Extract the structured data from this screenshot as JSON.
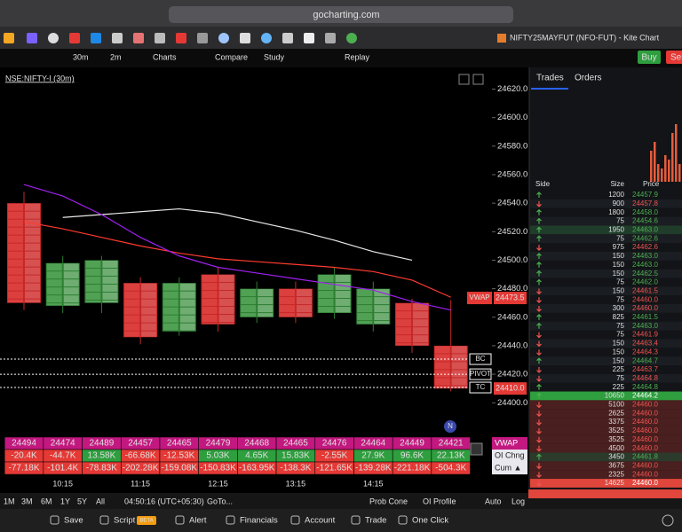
{
  "browser": {
    "url": "gocharting.com",
    "tab_title": "NIFTY25MAYFUT (NFO-FUT) - Kite Chart"
  },
  "toolbar": {
    "items": [
      "30m",
      "2m",
      "Charts",
      "Compare",
      "Study",
      "Replay"
    ],
    "buy": "Buy",
    "sell": "Sell"
  },
  "chart_data": {
    "type": "candlestick",
    "title": "NSE:NIFTY-I (30m)",
    "categories": [
      null,
      "10:15",
      null,
      "11:15",
      null,
      "12:15",
      null,
      "13:15",
      null,
      "14:15",
      null,
      null
    ],
    "open": [
      24540,
      24468,
      24470,
      24484,
      24450,
      24490,
      24460,
      24480,
      24463,
      24455,
      24470,
      24440
    ],
    "high": [
      24548,
      24503,
      24503,
      24488,
      24488,
      24495,
      24485,
      24485,
      24495,
      24485,
      24473,
      24472
    ],
    "low": [
      24465,
      24463,
      24463,
      24441,
      24447,
      24450,
      24456,
      24456,
      24459,
      24450,
      24435,
      24408
    ],
    "close": [
      24470,
      24498,
      24500,
      24446,
      24484,
      24455,
      24480,
      24460,
      24490,
      24480,
      24440,
      24410
    ],
    "up_color": "#2e7d32",
    "down_color": "#c62828",
    "lines": [
      {
        "color": "#ff3b30",
        "values": [
          24527,
          24522,
          24516,
          24510,
          24505,
          24501,
          24499,
          24497,
          24495,
          24492,
          24486,
          24474
        ]
      },
      {
        "color": "#e8e8e8",
        "values": [
          null,
          24530,
          24532,
          24534,
          24536,
          24533,
          24527,
          24521,
          24514,
          24506,
          24500,
          null
        ]
      },
      {
        "color": "#a020f0",
        "values": [
          24553,
          24545,
          24532,
          24516,
          24503,
          24495,
          24491,
          24487,
          24483,
          24479,
          24471,
          24465
        ]
      }
    ],
    "levels": [
      {
        "label": "BC",
        "value": 24430.6
      },
      {
        "label": "PIVOT",
        "value": 24420
      },
      {
        "label": "TC",
        "value": 24410.7
      }
    ],
    "markers": [
      {
        "name": "VWAP",
        "value": 24473.5,
        "label": "24473.5"
      },
      {
        "value": 24410,
        "label": "24410.0"
      }
    ],
    "ylim": [
      24379,
      24634
    ],
    "yticks": [
      {
        "value": 24400,
        "label": "24400.0"
      },
      {
        "value": 24420,
        "label": "24420.0"
      },
      {
        "value": 24440,
        "label": "24440.0"
      },
      {
        "value": 24460,
        "label": "24460.0"
      },
      {
        "value": 24480,
        "label": "24480.0"
      },
      {
        "value": 24500,
        "label": "24500.0"
      },
      {
        "value": 24520,
        "label": "24520.0"
      },
      {
        "value": 24540,
        "label": "24540.0"
      },
      {
        "value": 24560,
        "label": "24560.0"
      },
      {
        "value": 24580,
        "label": "24580.0"
      },
      {
        "value": 24600,
        "label": "24600.0"
      },
      {
        "value": 24620,
        "label": "24620.0"
      }
    ]
  },
  "table": {
    "row_labels": [
      "VWAP",
      "OI Chng",
      "Cum ▲"
    ],
    "rows": [
      [
        "24494",
        "24474",
        "24489",
        "24457",
        "24465",
        "24479",
        "24468",
        "24465",
        "24476",
        "24464",
        "24449",
        "24421"
      ],
      [
        "-20.4K",
        "-44.7K",
        "13.58K",
        "-66.68K",
        "-12.53K",
        "5.03K",
        "4.65K",
        "15.83K",
        "-2.55K",
        "27.9K",
        "96.6K",
        "22.13K"
      ],
      [
        "-77.18K",
        "-101.4K",
        "-78.83K",
        "-202.28K",
        "-159.08K",
        "-150.83K",
        "-163.95K",
        "-138.3K",
        "-121.65K",
        "-139.28K",
        "-221.18K",
        "-504.3K"
      ]
    ]
  },
  "trades": {
    "tabs": [
      "Trades",
      "Orders"
    ],
    "columns": [
      "Side",
      "Size",
      "Price"
    ],
    "rows": [
      {
        "side": "buy",
        "size": "1200",
        "price": "24457.9"
      },
      {
        "side": "sell",
        "size": "900",
        "price": "24457.8"
      },
      {
        "side": "buy",
        "size": "1800",
        "price": "24458.0"
      },
      {
        "side": "buy",
        "size": "75",
        "price": "24454.6"
      },
      {
        "side": "buy",
        "size": "1950",
        "price": "24463.0"
      },
      {
        "side": "buy",
        "size": "75",
        "price": "24462.6"
      },
      {
        "side": "sell",
        "size": "975",
        "price": "24462.6"
      },
      {
        "side": "buy",
        "size": "150",
        "price": "24463.0"
      },
      {
        "side": "buy",
        "size": "150",
        "price": "24463.0"
      },
      {
        "side": "buy",
        "size": "150",
        "price": "24462.5"
      },
      {
        "side": "buy",
        "size": "75",
        "price": "24462.0"
      },
      {
        "side": "sell",
        "size": "150",
        "price": "24461.5"
      },
      {
        "side": "sell",
        "size": "75",
        "price": "24460.0"
      },
      {
        "side": "sell",
        "size": "300",
        "price": "24460.0"
      },
      {
        "side": "buy",
        "size": "825",
        "price": "24461.5"
      },
      {
        "side": "buy",
        "size": "75",
        "price": "24463.0"
      },
      {
        "side": "sell",
        "size": "75",
        "price": "24461.9"
      },
      {
        "side": "sell",
        "size": "150",
        "price": "24463.4"
      },
      {
        "side": "sell",
        "size": "150",
        "price": "24464.3"
      },
      {
        "side": "buy",
        "size": "150",
        "price": "24464.7"
      },
      {
        "side": "sell",
        "size": "225",
        "price": "24463.7"
      },
      {
        "side": "sell",
        "size": "75",
        "price": "24464.8"
      },
      {
        "side": "buy",
        "size": "225",
        "price": "24464.8"
      },
      {
        "side": "buy",
        "size": "10650",
        "price": "24464.2"
      },
      {
        "side": "sell",
        "size": "5100",
        "price": "24460.0"
      },
      {
        "side": "sell",
        "size": "2625",
        "price": "24460.0"
      },
      {
        "side": "sell",
        "size": "3375",
        "price": "24460.0"
      },
      {
        "side": "sell",
        "size": "3525",
        "price": "24460.0"
      },
      {
        "side": "sell",
        "size": "3525",
        "price": "24460.0"
      },
      {
        "side": "sell",
        "size": "4500",
        "price": "24460.0"
      },
      {
        "side": "buy",
        "size": "3450",
        "price": "24461.8"
      },
      {
        "side": "sell",
        "size": "3675",
        "price": "24460.0"
      },
      {
        "side": "sell",
        "size": "2325",
        "price": "24460.0"
      },
      {
        "side": "sell",
        "size": "14625",
        "price": "24460.0"
      }
    ]
  },
  "status_bar": {
    "ranges": [
      "1M",
      "3M",
      "6M",
      "1Y",
      "5Y",
      "All"
    ],
    "clock": "04:50:16 (UTC+05:30)",
    "goto": "GoTo...",
    "right": [
      "Prob Cone",
      "OI Profile",
      "Auto",
      "Log"
    ]
  },
  "footer": {
    "items": [
      "Save",
      "Script",
      "Alert",
      "Financials",
      "Account",
      "Trade",
      "One Click"
    ],
    "badge": "BETA"
  }
}
